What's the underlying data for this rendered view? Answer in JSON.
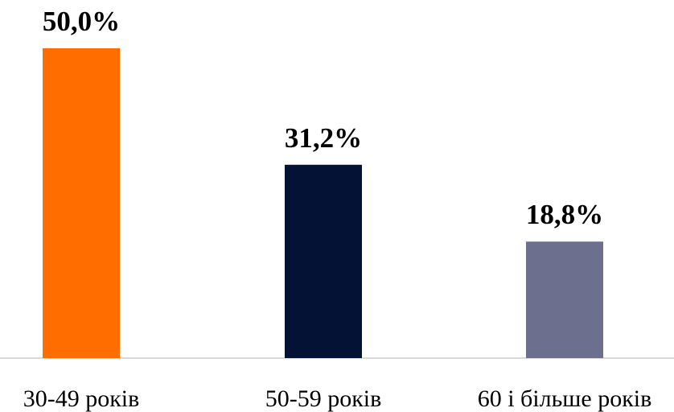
{
  "chart_data": {
    "type": "bar",
    "categories": [
      "30-49 років",
      "50-59 років",
      "60 і більше років"
    ],
    "values": [
      50.0,
      31.2,
      18.8
    ],
    "value_labels": [
      "50,0%",
      "31,2%",
      "18,8%"
    ],
    "colors": [
      "#ff6d00",
      "#041236",
      "#6c6f8e"
    ]
  }
}
